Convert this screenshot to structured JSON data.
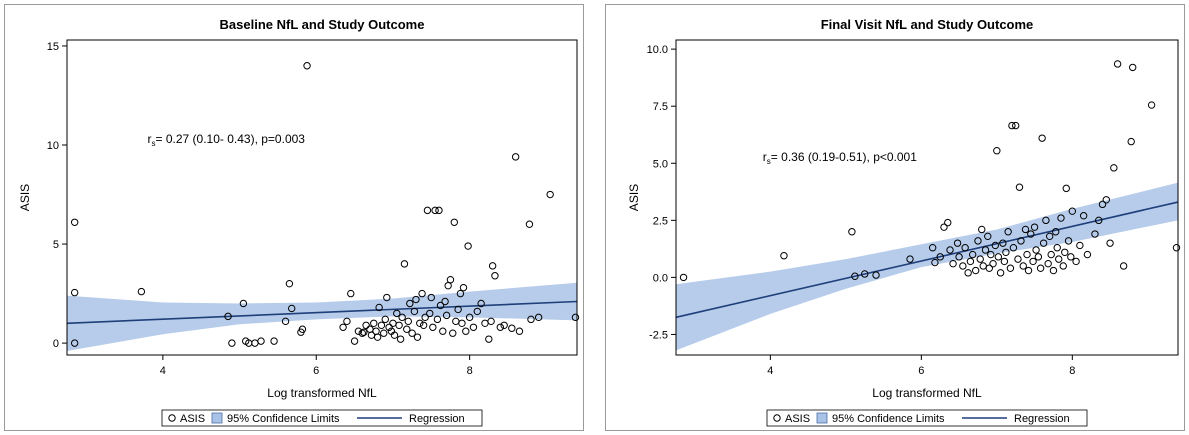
{
  "chart_data": [
    {
      "type": "scatter",
      "title": "Baseline NfL and Study Outcome",
      "xlabel": "Log transformed NfL",
      "ylabel": "ASIS",
      "xlim": [
        2.75,
        9.4
      ],
      "ylim": [
        -0.6,
        15.3
      ],
      "x_ticks": [
        4,
        6,
        8
      ],
      "y_ticks": [
        0,
        5,
        10,
        15
      ],
      "annotation": {
        "prefix": "r",
        "sub": "s",
        "text": "= 0.27 (0.10- 0.43), p=0.003",
        "x": 3.8,
        "y": 10.1
      },
      "legend": {
        "placement": "bottom",
        "items": [
          "ASIS",
          "95% Confidence Limits",
          "Regression"
        ]
      },
      "regression": {
        "x": [
          2.75,
          9.4
        ],
        "y": [
          1.0,
          2.1
        ]
      },
      "ci_band": {
        "x": [
          2.75,
          4,
          5,
          6,
          7,
          8,
          9.4
        ],
        "lower": [
          -0.4,
          0.45,
          0.95,
          1.2,
          1.35,
          1.3,
          1.15
        ],
        "upper": [
          2.4,
          2.05,
          2.0,
          2.05,
          2.25,
          2.6,
          3.05
        ]
      },
      "points": [
        [
          2.85,
          6.1
        ],
        [
          2.85,
          2.55
        ],
        [
          2.85,
          0.0
        ],
        [
          3.72,
          2.6
        ],
        [
          4.85,
          1.35
        ],
        [
          4.9,
          0.0
        ],
        [
          5.05,
          2.0
        ],
        [
          5.08,
          0.1
        ],
        [
          5.12,
          0.0
        ],
        [
          5.2,
          0.0
        ],
        [
          5.28,
          0.1
        ],
        [
          5.45,
          0.1
        ],
        [
          5.6,
          1.1
        ],
        [
          5.65,
          3.0
        ],
        [
          5.68,
          1.75
        ],
        [
          5.8,
          0.55
        ],
        [
          5.82,
          0.7
        ],
        [
          5.88,
          14.0
        ],
        [
          6.35,
          0.8
        ],
        [
          6.4,
          1.1
        ],
        [
          6.45,
          2.5
        ],
        [
          6.5,
          0.1
        ],
        [
          6.55,
          0.6
        ],
        [
          6.6,
          0.5
        ],
        [
          6.62,
          0.55
        ],
        [
          6.65,
          0.9
        ],
        [
          6.7,
          0.7
        ],
        [
          6.72,
          0.4
        ],
        [
          6.75,
          1.0
        ],
        [
          6.78,
          0.6
        ],
        [
          6.8,
          0.3
        ],
        [
          6.82,
          1.8
        ],
        [
          6.85,
          0.9
        ],
        [
          6.88,
          0.5
        ],
        [
          6.9,
          1.2
        ],
        [
          6.92,
          2.3
        ],
        [
          6.95,
          0.8
        ],
        [
          6.98,
          0.6
        ],
        [
          7.0,
          1.0
        ],
        [
          7.02,
          0.4
        ],
        [
          7.05,
          1.5
        ],
        [
          7.08,
          0.9
        ],
        [
          7.1,
          0.2
        ],
        [
          7.12,
          1.3
        ],
        [
          7.15,
          4.0
        ],
        [
          7.18,
          0.7
        ],
        [
          7.2,
          1.1
        ],
        [
          7.22,
          2.0
        ],
        [
          7.25,
          0.5
        ],
        [
          7.28,
          1.6
        ],
        [
          7.3,
          2.2
        ],
        [
          7.32,
          0.3
        ],
        [
          7.35,
          1.0
        ],
        [
          7.38,
          2.5
        ],
        [
          7.4,
          0.9
        ],
        [
          7.42,
          1.3
        ],
        [
          7.45,
          6.7
        ],
        [
          7.48,
          1.5
        ],
        [
          7.5,
          2.3
        ],
        [
          7.52,
          0.8
        ],
        [
          7.55,
          6.7
        ],
        [
          7.58,
          1.2
        ],
        [
          7.6,
          6.7
        ],
        [
          7.62,
          1.9
        ],
        [
          7.65,
          0.6
        ],
        [
          7.68,
          2.1
        ],
        [
          7.7,
          1.4
        ],
        [
          7.72,
          2.9
        ],
        [
          7.75,
          3.2
        ],
        [
          7.78,
          0.5
        ],
        [
          7.8,
          6.1
        ],
        [
          7.82,
          1.1
        ],
        [
          7.85,
          1.7
        ],
        [
          7.88,
          2.5
        ],
        [
          7.9,
          1.0
        ],
        [
          7.92,
          2.8
        ],
        [
          7.95,
          0.6
        ],
        [
          7.98,
          4.9
        ],
        [
          8.0,
          1.3
        ],
        [
          8.05,
          0.8
        ],
        [
          8.1,
          1.6
        ],
        [
          8.15,
          2.0
        ],
        [
          8.2,
          1.0
        ],
        [
          8.25,
          0.2
        ],
        [
          8.28,
          1.1
        ],
        [
          8.3,
          3.9
        ],
        [
          8.33,
          3.4
        ],
        [
          8.4,
          0.8
        ],
        [
          8.45,
          0.9
        ],
        [
          8.55,
          0.75
        ],
        [
          8.6,
          9.4
        ],
        [
          8.65,
          0.6
        ],
        [
          8.78,
          6.0
        ],
        [
          8.8,
          1.2
        ],
        [
          8.9,
          1.3
        ],
        [
          9.05,
          7.5
        ],
        [
          9.38,
          1.3
        ]
      ]
    },
    {
      "type": "scatter",
      "title": "Final Visit NfL and Study Outcome",
      "xlabel": "Log transformed NfL",
      "ylabel": "ASIS",
      "xlim": [
        2.75,
        9.4
      ],
      "ylim": [
        -3.4,
        10.4
      ],
      "x_ticks": [
        4,
        6,
        8
      ],
      "y_ticks": [
        -2.5,
        0.0,
        2.5,
        5.0,
        7.5,
        10.0
      ],
      "y_tick_labels": [
        "-2.5",
        "0.0",
        "2.5",
        "5.0",
        "7.5",
        "10.0"
      ],
      "annotation": {
        "prefix": "r",
        "sub": "s",
        "text": "= 0.36 (0.19-0.51), p<0.001",
        "x": 3.9,
        "y": 5.1
      },
      "legend": {
        "placement": "bottom",
        "items": [
          "ASIS",
          "95% Confidence Limits",
          "Regression"
        ]
      },
      "regression": {
        "x": [
          2.75,
          9.4
        ],
        "y": [
          -1.75,
          3.3
        ]
      },
      "ci_band": {
        "x": [
          2.75,
          4,
          5,
          6,
          7,
          8,
          9.4
        ],
        "lower": [
          -3.2,
          -1.6,
          -0.5,
          0.45,
          1.05,
          1.55,
          2.5
        ],
        "upper": [
          -0.3,
          0.25,
          0.8,
          1.45,
          2.1,
          3.0,
          4.15
        ]
      },
      "points": [
        [
          2.85,
          0.0
        ],
        [
          4.18,
          0.95
        ],
        [
          5.08,
          2.0
        ],
        [
          5.12,
          0.05
        ],
        [
          5.25,
          0.15
        ],
        [
          5.4,
          0.1
        ],
        [
          5.85,
          0.8
        ],
        [
          6.15,
          1.3
        ],
        [
          6.18,
          0.65
        ],
        [
          6.25,
          0.9
        ],
        [
          6.3,
          2.2
        ],
        [
          6.35,
          2.4
        ],
        [
          6.38,
          1.2
        ],
        [
          6.42,
          0.6
        ],
        [
          6.48,
          1.5
        ],
        [
          6.5,
          0.9
        ],
        [
          6.55,
          0.5
        ],
        [
          6.58,
          1.3
        ],
        [
          6.62,
          0.2
        ],
        [
          6.65,
          0.7
        ],
        [
          6.68,
          1.0
        ],
        [
          6.72,
          0.3
        ],
        [
          6.75,
          1.6
        ],
        [
          6.78,
          0.8
        ],
        [
          6.8,
          2.1
        ],
        [
          6.82,
          0.5
        ],
        [
          6.85,
          1.2
        ],
        [
          6.88,
          1.8
        ],
        [
          6.9,
          0.4
        ],
        [
          6.92,
          1.0
        ],
        [
          6.95,
          0.6
        ],
        [
          6.98,
          1.4
        ],
        [
          7.0,
          5.55
        ],
        [
          7.02,
          0.9
        ],
        [
          7.05,
          0.2
        ],
        [
          7.08,
          1.5
        ],
        [
          7.1,
          0.7
        ],
        [
          7.12,
          1.1
        ],
        [
          7.15,
          2.0
        ],
        [
          7.18,
          0.4
        ],
        [
          7.2,
          6.65
        ],
        [
          7.22,
          1.3
        ],
        [
          7.25,
          6.65
        ],
        [
          7.28,
          0.8
        ],
        [
          7.3,
          3.95
        ],
        [
          7.32,
          1.6
        ],
        [
          7.35,
          0.5
        ],
        [
          7.38,
          2.1
        ],
        [
          7.4,
          1.0
        ],
        [
          7.42,
          0.3
        ],
        [
          7.45,
          1.9
        ],
        [
          7.48,
          0.7
        ],
        [
          7.5,
          2.2
        ],
        [
          7.52,
          1.2
        ],
        [
          7.55,
          0.9
        ],
        [
          7.58,
          0.4
        ],
        [
          7.6,
          6.1
        ],
        [
          7.62,
          1.5
        ],
        [
          7.65,
          2.5
        ],
        [
          7.68,
          0.6
        ],
        [
          7.7,
          1.8
        ],
        [
          7.72,
          1.0
        ],
        [
          7.75,
          0.3
        ],
        [
          7.78,
          2.0
        ],
        [
          7.8,
          1.3
        ],
        [
          7.82,
          0.8
        ],
        [
          7.85,
          2.6
        ],
        [
          7.88,
          0.5
        ],
        [
          7.9,
          1.1
        ],
        [
          7.92,
          3.9
        ],
        [
          7.95,
          1.6
        ],
        [
          7.98,
          0.9
        ],
        [
          8.0,
          2.9
        ],
        [
          8.05,
          0.7
        ],
        [
          8.1,
          1.4
        ],
        [
          8.15,
          2.7
        ],
        [
          8.2,
          1.0
        ],
        [
          8.3,
          1.9
        ],
        [
          8.35,
          2.5
        ],
        [
          8.4,
          3.2
        ],
        [
          8.45,
          3.4
        ],
        [
          8.5,
          1.5
        ],
        [
          8.55,
          4.8
        ],
        [
          8.6,
          9.35
        ],
        [
          8.68,
          0.5
        ],
        [
          8.78,
          5.95
        ],
        [
          8.8,
          9.2
        ],
        [
          9.05,
          7.55
        ],
        [
          9.38,
          1.3
        ]
      ]
    }
  ]
}
